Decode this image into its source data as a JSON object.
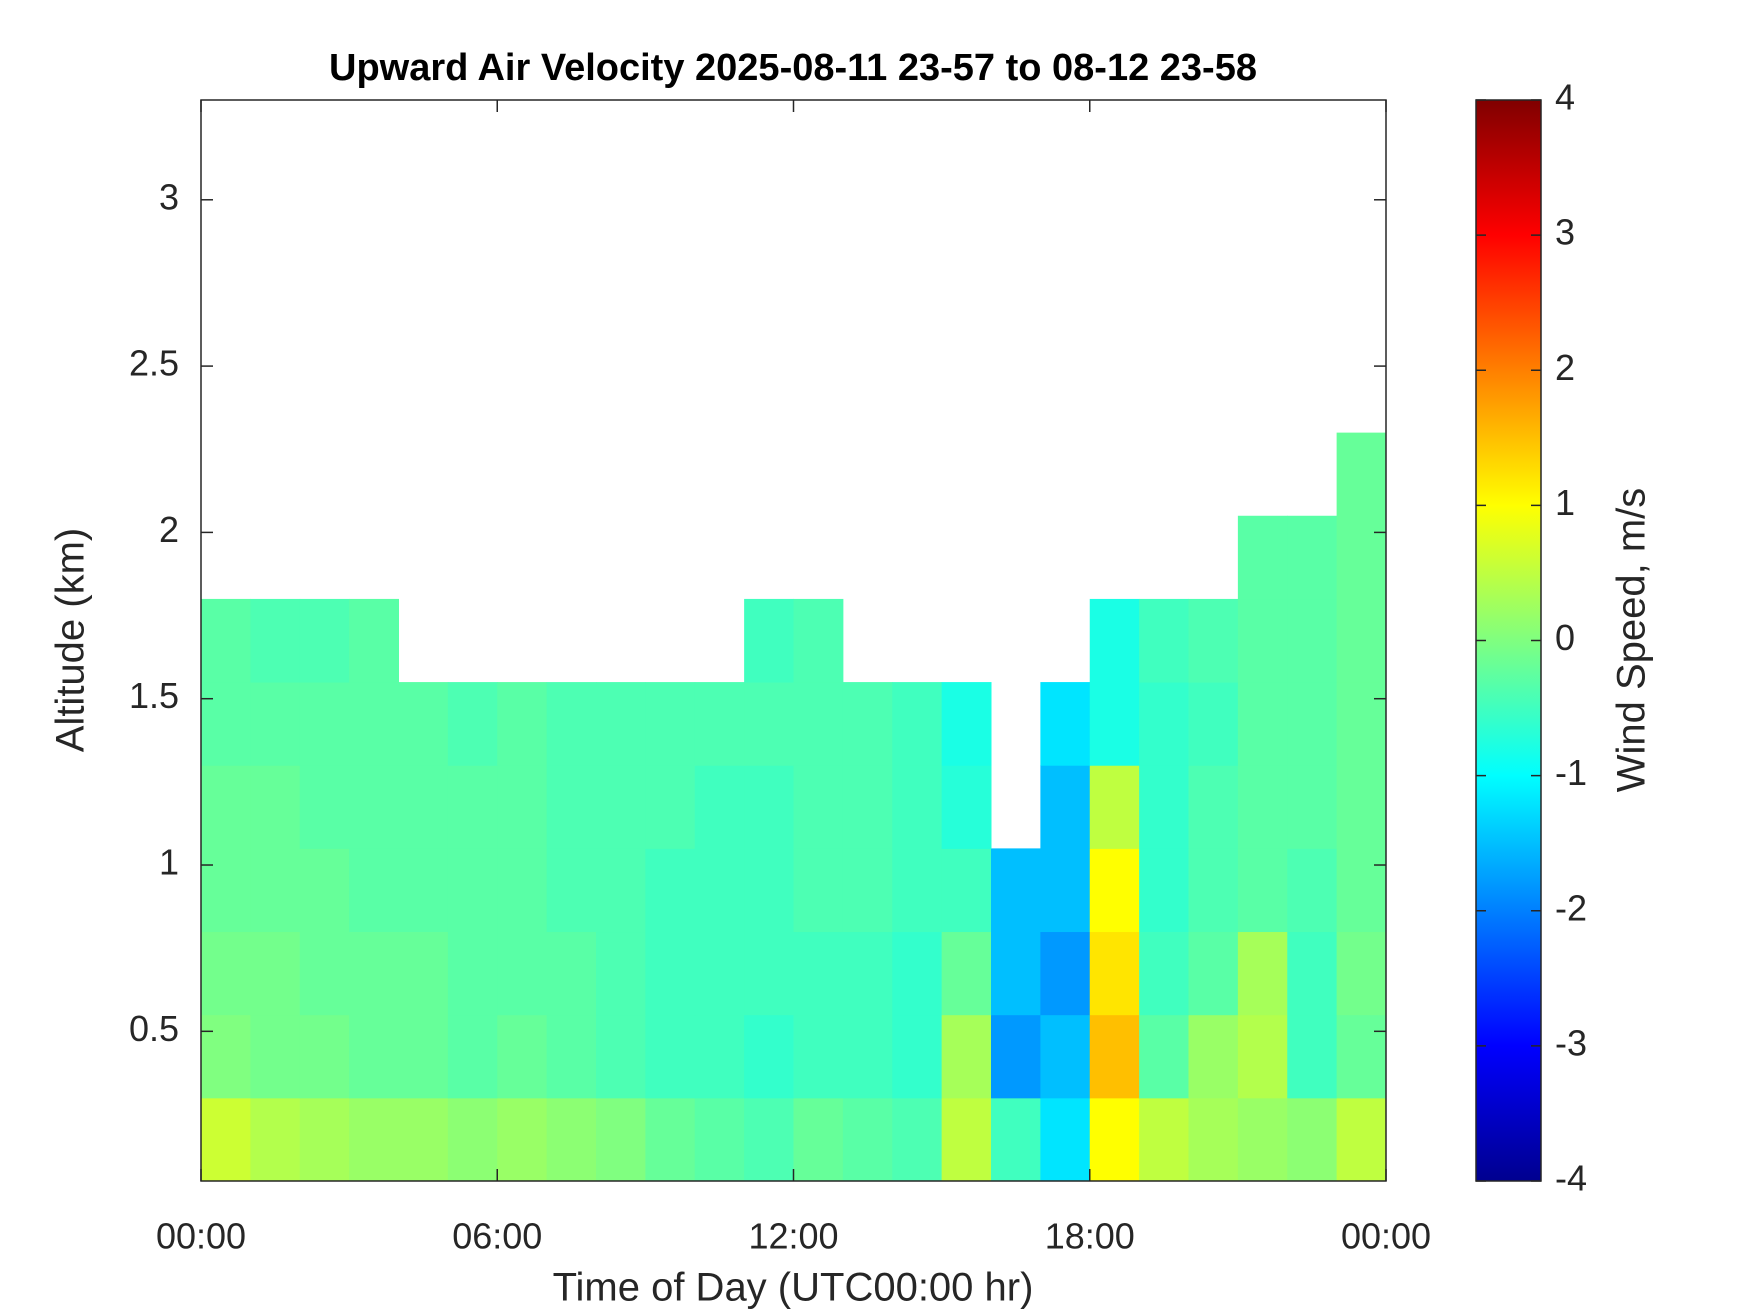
{
  "chart_data": {
    "type": "heatmap",
    "title": "Upward Air Velocity 2025-08-11 23-57 to 08-12 23-58",
    "x_label": "Time of Day (UTC00:00 hr)",
    "y_label": "Altitude (km)",
    "colorbar_label": "Wind Speed, m/s",
    "colormap": "jet",
    "xlim": [
      0,
      24
    ],
    "xticks": [
      {
        "value": 0,
        "label": "00:00"
      },
      {
        "value": 6,
        "label": "06:00"
      },
      {
        "value": 12,
        "label": "12:00"
      },
      {
        "value": 18,
        "label": "18:00"
      },
      {
        "value": 24,
        "label": "00:00"
      }
    ],
    "ylim": [
      0.05,
      3.3
    ],
    "yticks": [
      0.5,
      1,
      1.5,
      2,
      2.5,
      3
    ],
    "clim": [
      -4,
      4
    ],
    "cticks": [
      -4,
      -3,
      -2,
      -1,
      0,
      1,
      2,
      3,
      4
    ],
    "x": [
      0.5,
      1.5,
      2.5,
      3.5,
      4.5,
      5.5,
      6.5,
      7.5,
      8.5,
      9.5,
      10.5,
      11.5,
      12.5,
      13.5,
      14.5,
      15.5,
      16.5,
      17.5,
      18.5,
      19.5,
      20.5,
      21.5,
      22.5,
      23.5
    ],
    "y": [
      0.175,
      0.425,
      0.675,
      0.925,
      1.175,
      1.425,
      1.675,
      1.925,
      2.175,
      2.425,
      2.675,
      2.925,
      3.175
    ],
    "values": [
      [
        0.6,
        0.4,
        0.3,
        0.2,
        0.2,
        0.1,
        0.2,
        0.1,
        0,
        -0.2,
        -0.3,
        -0.4,
        -0.2,
        -0.3,
        -0.4,
        0.5,
        -0.5,
        -1.2,
        1.0,
        0.5,
        0.3,
        0.2,
        0.1,
        0.5
      ],
      [
        0,
        -0.1,
        -0.1,
        -0.2,
        -0.2,
        -0.3,
        -0.2,
        -0.3,
        -0.4,
        -0.5,
        -0.5,
        -0.6,
        -0.5,
        -0.5,
        -0.6,
        0.3,
        -1.8,
        -1.5,
        1.5,
        -0.3,
        0.2,
        0.4,
        -0.5,
        -0.2
      ],
      [
        -0.1,
        -0.1,
        -0.2,
        -0.2,
        -0.2,
        -0.3,
        -0.3,
        -0.3,
        -0.4,
        -0.5,
        -0.5,
        -0.5,
        -0.5,
        -0.5,
        -0.6,
        -0.2,
        -1.5,
        -1.8,
        1.2,
        -0.5,
        -0.3,
        0.3,
        -0.5,
        -0.1
      ],
      [
        -0.2,
        -0.2,
        -0.2,
        -0.3,
        -0.3,
        -0.3,
        -0.3,
        -0.4,
        -0.4,
        -0.5,
        -0.5,
        -0.5,
        -0.4,
        -0.4,
        -0.5,
        -0.5,
        -1.5,
        -1.5,
        1.0,
        -0.6,
        -0.4,
        -0.3,
        -0.4,
        -0.2
      ],
      [
        -0.2,
        -0.2,
        -0.3,
        -0.3,
        -0.3,
        -0.3,
        -0.3,
        -0.4,
        -0.4,
        -0.4,
        -0.5,
        -0.5,
        -0.4,
        -0.4,
        -0.5,
        -0.7,
        null,
        -1.5,
        0.5,
        -0.6,
        -0.4,
        -0.3,
        -0.3,
        -0.2
      ],
      [
        -0.3,
        -0.3,
        -0.3,
        -0.3,
        -0.3,
        -0.4,
        -0.3,
        -0.4,
        -0.4,
        -0.4,
        -0.4,
        -0.4,
        -0.4,
        -0.4,
        -0.5,
        -0.8,
        null,
        -1.2,
        -0.8,
        -0.6,
        -0.5,
        -0.3,
        -0.3,
        -0.2
      ],
      [
        -0.3,
        -0.4,
        -0.4,
        -0.3,
        null,
        null,
        null,
        null,
        null,
        null,
        null,
        -0.5,
        -0.4,
        null,
        null,
        null,
        null,
        null,
        -0.8,
        -0.5,
        -0.4,
        -0.3,
        -0.3,
        -0.2
      ],
      [
        null,
        null,
        null,
        null,
        null,
        null,
        null,
        null,
        null,
        null,
        null,
        null,
        null,
        null,
        null,
        null,
        null,
        null,
        null,
        null,
        null,
        -0.3,
        -0.3,
        -0.2
      ],
      [
        null,
        null,
        null,
        null,
        null,
        null,
        null,
        null,
        null,
        null,
        null,
        null,
        null,
        null,
        null,
        null,
        null,
        null,
        null,
        null,
        null,
        null,
        null,
        -0.2
      ],
      [
        null,
        null,
        null,
        null,
        null,
        null,
        null,
        null,
        null,
        null,
        null,
        null,
        null,
        null,
        null,
        null,
        null,
        null,
        null,
        null,
        null,
        null,
        null,
        null
      ],
      [
        null,
        null,
        null,
        null,
        null,
        null,
        null,
        null,
        null,
        null,
        null,
        null,
        null,
        null,
        null,
        null,
        null,
        null,
        null,
        null,
        null,
        null,
        null,
        null
      ],
      [
        null,
        null,
        null,
        null,
        null,
        null,
        null,
        null,
        null,
        null,
        null,
        null,
        null,
        null,
        null,
        null,
        null,
        null,
        null,
        null,
        null,
        null,
        null,
        null
      ],
      [
        null,
        null,
        null,
        null,
        null,
        null,
        null,
        null,
        null,
        null,
        null,
        null,
        null,
        null,
        null,
        null,
        null,
        null,
        null,
        null,
        null,
        null,
        null,
        null
      ]
    ]
  }
}
